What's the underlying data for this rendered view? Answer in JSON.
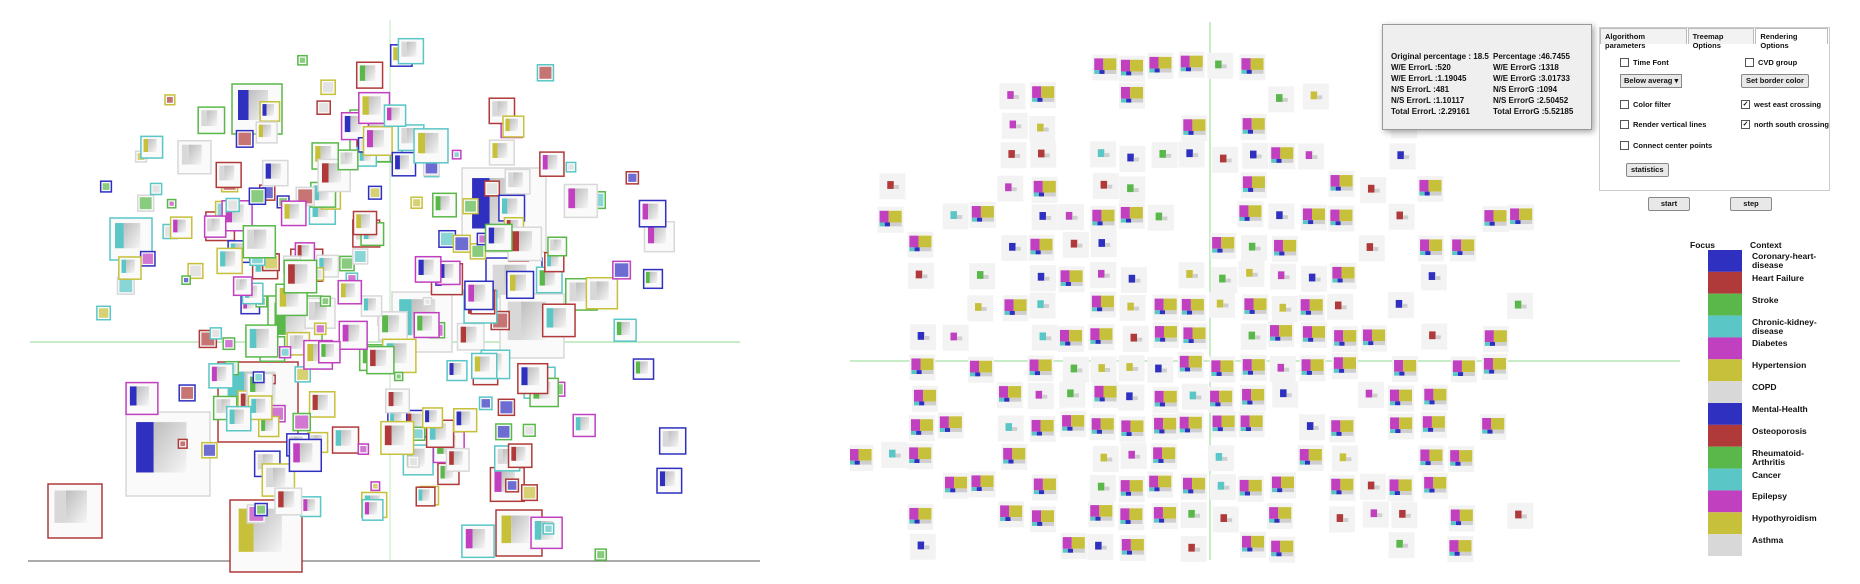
{
  "stats": {
    "left": [
      "Original percentage : 18.5",
      "W/E ErrorL :520",
      "W/E ErrorL :1.19045",
      "N/S ErrorL :481",
      "N/S ErrorL :1.10117",
      "Total ErrorL :2.29161"
    ],
    "right": [
      "Percentage :46.7455",
      "W/E ErrorG :1318",
      "W/E ErrorG :3.01733",
      "N/S ErrorG :1094",
      "N/S ErrorG :2.50452",
      "Total ErrorG :5.52185"
    ]
  },
  "tabs": [
    "Algorithom parameters",
    "Treemap Options",
    "Rendering Options"
  ],
  "options": {
    "time_font": "Time Font",
    "cvd_group": "CVD group",
    "below_average": "Below averag",
    "set_border_color": "Set border color",
    "color_filter": "Color filter",
    "west_east_crossing": "west east crossing",
    "render_vertical_lines": "Render vertical lines",
    "north_south_crossing": "north south crossing",
    "connect_center_points": "Connect center points",
    "statistics": "statistics",
    "start": "start",
    "step": "step"
  },
  "legend": {
    "focus_header": "Focus",
    "context_header": "Context",
    "items": [
      {
        "label": "Coronary-heart-disease",
        "color": "#2f2fc0"
      },
      {
        "label": "Heart Failure",
        "color": "#b03a3a"
      },
      {
        "label": "Stroke",
        "color": "#5ab84a"
      },
      {
        "label": "Chronic-kidney-disease",
        "color": "#5ac6c6"
      },
      {
        "label": "Diabetes",
        "color": "#c040c0"
      },
      {
        "label": "Hypertension",
        "color": "#c6c03a"
      },
      {
        "label": "COPD",
        "color": "#d8d8d8"
      },
      {
        "label": "Mental-Health",
        "color": "#2f2fc0"
      },
      {
        "label": "Osteoporosis",
        "color": "#b03a3a"
      },
      {
        "label": "Rheumatoid-Arthritis",
        "color": "#5ab84a"
      },
      {
        "label": "Cancer",
        "color": "#5ac6c6"
      },
      {
        "label": "Epilepsy",
        "color": "#c040c0"
      },
      {
        "label": "Hypothyroidism",
        "color": "#c6c03a"
      },
      {
        "label": "Asthma",
        "color": "#d8d8d8"
      }
    ]
  }
}
